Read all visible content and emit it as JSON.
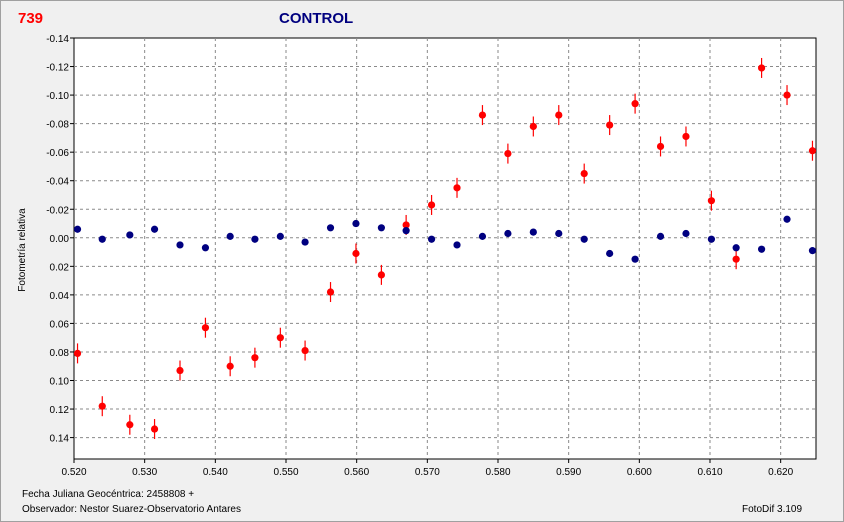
{
  "header": {
    "star_id": "739",
    "title": "CONTROL"
  },
  "footer": {
    "jd_line": "Fecha Juliana Geocéntrica: 2458808 +",
    "observer_line": "Observador: Nestor Suarez-Observatorio Antares",
    "software": "FotoDif 3.109"
  },
  "colors": {
    "series_red": "#ff0000",
    "series_blue": "#000080",
    "error_bar": "#ff0000",
    "title": "#00007f"
  },
  "chart_data": {
    "type": "scatter",
    "title": "CONTROL",
    "xlabel": "",
    "ylabel": "Fotometría relativa",
    "xlim": [
      0.52,
      0.625
    ],
    "ylim": [
      -0.14,
      0.155
    ],
    "y_inverted": true,
    "grid": true,
    "x_ticks": [
      "0.520",
      "0.530",
      "0.540",
      "0.550",
      "0.560",
      "0.570",
      "0.580",
      "0.590",
      "0.600",
      "0.610",
      "0.620"
    ],
    "y_ticks": [
      "-0.14",
      "-0.12",
      "-0.10",
      "-0.08",
      "-0.06",
      "-0.04",
      "-0.02",
      "0.00",
      "0.02",
      "0.04",
      "0.06",
      "0.08",
      "0.10",
      "0.12",
      "0.14"
    ],
    "series": [
      {
        "color": "#ff0000",
        "error": 0.007,
        "x": [
          0.5205,
          0.524,
          0.5279,
          0.5314,
          0.535,
          0.5386,
          0.5421,
          0.5456,
          0.5492,
          0.5527,
          0.5563,
          0.5599,
          0.5635,
          0.567,
          0.5706,
          0.5742,
          0.5778,
          0.5814,
          0.585,
          0.5886,
          0.5922,
          0.5958,
          0.5994,
          0.603,
          0.6066,
          0.6102,
          0.6137,
          0.6173,
          0.6209,
          0.6245
        ],
        "y": [
          0.081,
          0.118,
          0.131,
          0.134,
          0.093,
          0.063,
          0.09,
          0.084,
          0.07,
          0.079,
          0.038,
          0.011,
          0.026,
          -0.009,
          -0.023,
          -0.035,
          -0.086,
          -0.059,
          -0.078,
          -0.086,
          -0.045,
          -0.079,
          -0.094,
          -0.064,
          -0.071,
          -0.026,
          0.015,
          -0.119,
          -0.1,
          -0.061
        ]
      },
      {
        "color": "#000080",
        "error": 0,
        "x": [
          0.5205,
          0.524,
          0.5279,
          0.5314,
          0.535,
          0.5386,
          0.5421,
          0.5456,
          0.5492,
          0.5527,
          0.5563,
          0.5599,
          0.5635,
          0.567,
          0.5706,
          0.5742,
          0.5778,
          0.5814,
          0.585,
          0.5886,
          0.5922,
          0.5958,
          0.5994,
          0.603,
          0.6066,
          0.6102,
          0.6137,
          0.6173,
          0.6209,
          0.6245
        ],
        "y": [
          -0.006,
          0.001,
          -0.002,
          -0.006,
          0.005,
          0.007,
          -0.001,
          0.001,
          -0.001,
          0.003,
          -0.007,
          -0.01,
          -0.007,
          -0.005,
          0.001,
          0.005,
          -0.001,
          -0.003,
          -0.004,
          -0.003,
          0.001,
          0.011,
          0.015,
          -0.001,
          -0.003,
          0.001,
          0.007,
          0.008,
          -0.013,
          0.009
        ]
      }
    ]
  }
}
